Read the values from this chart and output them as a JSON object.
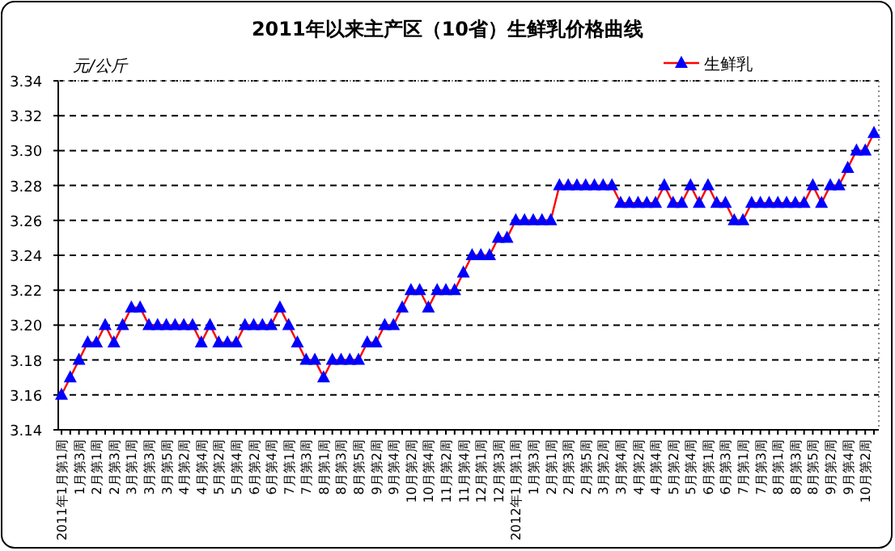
{
  "chart_data": {
    "type": "line",
    "title": "2011年以来主产区（10省）生鲜乳价格曲线",
    "ylabel": "元/公斤",
    "categories": [
      "2011年1月第1周",
      null,
      "1月第3周",
      null,
      "2月第1周",
      null,
      "2月第3周",
      null,
      "3月第1周",
      null,
      "3月第3周",
      null,
      "3月第5周",
      null,
      "4月第2周",
      null,
      "4月第4周",
      null,
      "5月第2周",
      null,
      "5月第4周",
      null,
      "6月第2周",
      null,
      "6月第4周",
      null,
      "7月第1周",
      null,
      "7月第3周",
      null,
      "8月第1周",
      null,
      "8月第3周",
      null,
      "8月第5周",
      null,
      "9月第2周",
      null,
      "9月第4周",
      null,
      "10月第2周",
      null,
      "10月第4周",
      null,
      "11月第2周",
      null,
      "11月第4周",
      null,
      "12月第1周",
      null,
      "12月第3周",
      null,
      "2012年1月第1周",
      null,
      "1月第3周",
      null,
      "2月第1周",
      null,
      "2月第3周",
      null,
      "2月第5周",
      null,
      "3月第2周",
      null,
      "3月第4周",
      null,
      "4月第2周",
      null,
      "4月第4周",
      null,
      "5月第2周",
      null,
      "5月第4周",
      null,
      "6月第1周",
      null,
      "6月第3周",
      null,
      "7月第1周",
      null,
      "7月第3周",
      null,
      "8月第1周",
      null,
      "8月第3周",
      null,
      "8月第5周",
      null,
      "9月第2周",
      null,
      "9月第4周",
      null,
      "10月第2周",
      null
    ],
    "series": [
      {
        "name": "生鲜乳",
        "color": "#ff0000",
        "colors": [
          "#0000ff",
          "#0000ff",
          "#0000ff",
          "#0000ff",
          "#0000ff",
          "#0000ff",
          "#0000ff",
          "#0000ff",
          "#0000ff",
          "#0000ff",
          "#0000ff",
          "#0000ff",
          "#0000ff",
          "#0000ff",
          "#0000ff",
          "#0000ff",
          "#0000ff",
          "#0000ff",
          "#0000ff",
          "#0000ff",
          "#0000ff",
          "#0000ff",
          "#0000ff",
          "#0000ff",
          "#0000ff",
          "#0000ff",
          "#0000ff",
          "#0000ff",
          "#0000ff",
          "#0000ff",
          "#0000ff",
          "#0000ff",
          "#0000ff",
          "#0000ff",
          "#0000ff",
          "#0000ff",
          "#0000ff",
          "#0000ff",
          "#0000ff",
          "#0000ff",
          "#0000ff",
          "#0000ff",
          "#0000ff",
          "#0000ff",
          "#0000ff",
          "#0000ff",
          "#0000ff",
          "#0000ff",
          "#0000ff",
          "#0000ff",
          "#0000ff",
          "#0000ff",
          "#0000ff",
          "#0000ff",
          "#0000ff",
          "#0000ff",
          "#0000ff",
          "#0000ff",
          "#0000ff",
          "#0000ff",
          "#0000ff",
          "#0000ff",
          "#0000ff",
          "#0000ff",
          "#0000ff",
          "#0000ff",
          "#0000ff",
          "#0000ff",
          "#0000ff",
          "#0000ff",
          "#0000ff",
          "#0000ff",
          "#0000ff",
          "#0000ff",
          "#0000ff",
          "#0000ff",
          "#0000ff",
          "#0000ff",
          "#0000ff",
          "#0000ff",
          "#0000ff",
          "#0000ff",
          "#0000ff",
          "#0000ff",
          "#0000ff",
          "#0000ff",
          "#0000ff",
          "#0000ff",
          "#0000ff",
          "#0000ff",
          "#0000ff",
          "#0000ff",
          "#0000ff",
          "#0000ff"
        ],
        "values": [
          3.16,
          3.17,
          3.18,
          3.19,
          3.19,
          3.2,
          3.19,
          3.2,
          3.21,
          3.21,
          3.2,
          3.2,
          3.2,
          3.2,
          3.2,
          3.2,
          3.19,
          3.2,
          3.19,
          3.19,
          3.19,
          3.2,
          3.2,
          3.2,
          3.2,
          3.21,
          3.2,
          3.19,
          3.18,
          3.18,
          3.17,
          3.18,
          3.18,
          3.18,
          3.18,
          3.19,
          3.19,
          3.2,
          3.2,
          3.21,
          3.22,
          3.22,
          3.21,
          3.22,
          3.22,
          3.22,
          3.23,
          3.24,
          3.24,
          3.24,
          3.25,
          3.25,
          3.26,
          3.26,
          3.26,
          3.26,
          3.26,
          3.28,
          3.28,
          3.28,
          3.28,
          3.28,
          3.28,
          3.28,
          3.27,
          3.27,
          3.27,
          3.27,
          3.27,
          3.28,
          3.27,
          3.27,
          3.28,
          3.27,
          3.28,
          3.27,
          3.27,
          3.26,
          3.26,
          3.27,
          3.27,
          3.27,
          3.27,
          3.27,
          3.27,
          3.27,
          3.28,
          3.27,
          3.28,
          3.28,
          3.29,
          3.3,
          3.3,
          3.31
        ]
      }
    ],
    "ylim": [
      3.14,
      3.34
    ],
    "yticks": [
      {
        "value": 3.14,
        "label": "3.14"
      },
      {
        "value": 3.16,
        "label": "3.16"
      },
      {
        "value": 3.18,
        "label": "3.18"
      },
      {
        "value": 3.2,
        "label": "3.20"
      },
      {
        "value": 3.22,
        "label": "3.22"
      },
      {
        "value": 3.24,
        "label": "3.24"
      },
      {
        "value": 3.26,
        "label": "3.26"
      },
      {
        "value": 3.28,
        "label": "3.28"
      },
      {
        "value": 3.3,
        "label": "3.30"
      },
      {
        "value": 3.32,
        "label": "3.32"
      },
      {
        "value": 3.34,
        "label": "3.34"
      }
    ],
    "grid": "y",
    "legend": "top right",
    "marker": "triangle",
    "line_style": "solid"
  }
}
